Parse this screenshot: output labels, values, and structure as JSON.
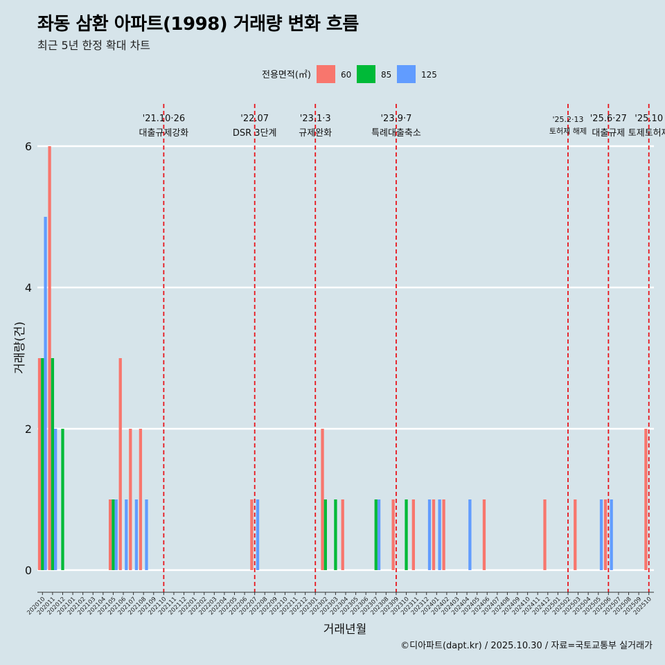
{
  "header": {
    "title": "좌동 삼환 아파트(1998) 거래량 변화 흐름",
    "subtitle": "최근 5년 한정 확대 차트"
  },
  "caption": "©디아파트(dapt.kr) / 2025.10.30 / 자료=국토교통부 실거래가",
  "colors": {
    "background": "#d6e4ea",
    "s60": "#f8766d",
    "s85": "#00ba38",
    "s125": "#619cff",
    "event_line": "#e8141b"
  },
  "chart_data": {
    "type": "bar",
    "title": "좌동 삼환 아파트(1998) 거래량 변화 흐름",
    "subtitle": "최근 5년 한정 확대 차트",
    "xlabel": "거래년월",
    "ylabel": "거래량(건)",
    "ylim": [
      0,
      6
    ],
    "yticks": [
      0,
      2,
      4,
      6
    ],
    "grid": true,
    "legend": {
      "title": "전용면적(㎡)",
      "position": "top"
    },
    "categories": [
      "202010",
      "202011",
      "202012",
      "202101",
      "202102",
      "202103",
      "202104",
      "202105",
      "202106",
      "202107",
      "202108",
      "202109",
      "202110",
      "202111",
      "202112",
      "202201",
      "202202",
      "202203",
      "202204",
      "202205",
      "202206",
      "202207",
      "202208",
      "202209",
      "202210",
      "202211",
      "202212",
      "202301",
      "202302",
      "202303",
      "202304",
      "202305",
      "202306",
      "202307",
      "202308",
      "202309",
      "202310",
      "202311",
      "202312",
      "202401",
      "202402",
      "202403",
      "202404",
      "202405",
      "202406",
      "202407",
      "202408",
      "202409",
      "202410",
      "202411",
      "202412",
      "202501",
      "202502",
      "202503",
      "202504",
      "202505",
      "202506",
      "202507",
      "202508",
      "202509",
      "202510"
    ],
    "series": [
      {
        "name": "60",
        "color": "#f8766d",
        "values": [
          3,
          6,
          0,
          0,
          0,
          0,
          0,
          1,
          3,
          2,
          2,
          0,
          0,
          0,
          0,
          0,
          0,
          0,
          0,
          0,
          0,
          1,
          0,
          0,
          0,
          0,
          0,
          0,
          2,
          0,
          1,
          0,
          0,
          0,
          0,
          1,
          0,
          1,
          0,
          1,
          1,
          0,
          0,
          0,
          1,
          0,
          0,
          0,
          0,
          0,
          1,
          0,
          0,
          1,
          0,
          0,
          1,
          0,
          0,
          0,
          2
        ]
      },
      {
        "name": "85",
        "color": "#00ba38",
        "values": [
          3,
          3,
          2,
          0,
          0,
          0,
          0,
          1,
          0,
          0,
          0,
          0,
          0,
          0,
          0,
          0,
          0,
          0,
          0,
          0,
          0,
          0,
          0,
          0,
          0,
          0,
          0,
          0,
          1,
          1,
          0,
          0,
          0,
          1,
          0,
          0,
          1,
          0,
          0,
          0,
          0,
          0,
          0,
          0,
          0,
          0,
          0,
          0,
          0,
          0,
          0,
          0,
          0,
          0,
          0,
          0,
          0,
          0,
          0,
          0,
          0
        ]
      },
      {
        "name": "125",
        "color": "#619cff",
        "values": [
          5,
          2,
          0,
          0,
          0,
          0,
          0,
          1,
          1,
          1,
          1,
          0,
          0,
          0,
          0,
          0,
          0,
          0,
          0,
          0,
          0,
          1,
          0,
          0,
          0,
          0,
          0,
          0,
          0,
          0,
          0,
          0,
          0,
          1,
          0,
          0,
          0,
          0,
          1,
          1,
          0,
          0,
          1,
          0,
          0,
          0,
          0,
          0,
          0,
          0,
          0,
          0,
          0,
          0,
          0,
          1,
          1,
          0,
          0,
          0,
          0
        ]
      }
    ],
    "events": [
      {
        "date": "'21.10·26",
        "label": "대출규제강화",
        "category": "202110"
      },
      {
        "date": "'22.07",
        "label": "DSR 3단계",
        "category": "202207"
      },
      {
        "date": "'23.1·3",
        "label": "규제완화",
        "category": "202301"
      },
      {
        "date": "'23.9·7",
        "label": "특례대출축소",
        "category": "202309"
      },
      {
        "date": "'25.2·13",
        "label": "토허제 해제",
        "category": "202502"
      },
      {
        "date": "'25.6·27",
        "label": "대출규제",
        "category": "202506"
      },
      {
        "date": "'25.10",
        "label": "토제토허제",
        "category": "202510"
      }
    ]
  }
}
